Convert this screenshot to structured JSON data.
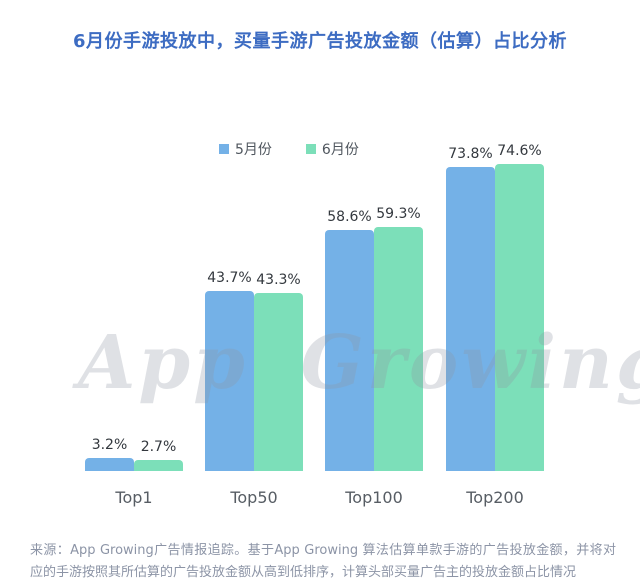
{
  "page": {
    "title": "6月份手游投放中，买量手游广告投放金额（估算）占比分析",
    "watermark": "App Growing",
    "source_note": "来源：App Growing广告情报追踪。基于App Growing 算法估算单款手游的广告投放金额，并将对应的手游按照其所估算的广告投放金额从高到低排序，计算头部买量广告主的投放金额占比情况"
  },
  "chart_data": {
    "type": "bar",
    "title": "6月份手游投放中，买量手游广告投放金额（估算）占比分析",
    "categories": [
      "Top1",
      "Top50",
      "Top100",
      "Top200"
    ],
    "series": [
      {
        "name": "5月份",
        "color": "#74B1E7",
        "values": [
          3.2,
          43.7,
          58.6,
          73.8
        ],
        "labels": [
          "3.2%",
          "43.7%",
          "58.6%",
          "73.8%"
        ]
      },
      {
        "name": "6月份",
        "color": "#7CDFB9",
        "values": [
          2.7,
          43.3,
          59.3,
          74.6
        ],
        "labels": [
          "2.7%",
          "43.3%",
          "59.3%",
          "74.6%"
        ]
      }
    ],
    "value_suffix": "%",
    "xlabel": "",
    "ylabel": "",
    "ylim": [
      0,
      80
    ],
    "grid": false,
    "y_axis_visible": false,
    "legend_position": "top"
  },
  "colors": {
    "title_text": "#3D6CC2",
    "bar_may": "#74B1E7",
    "bar_june": "#7CDFB9",
    "value_label_text": "#33383E",
    "axis_label_text": "#575D64",
    "source_text": "#8C94A6",
    "watermark_text": "#8F96A3"
  }
}
